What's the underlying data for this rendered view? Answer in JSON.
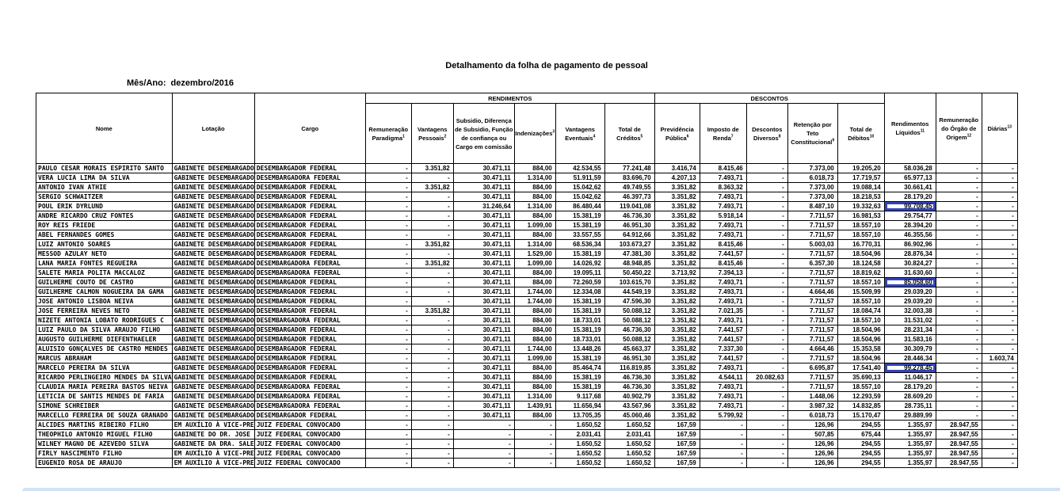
{
  "title": "Detalhamento da folha de pagamento de pessoal",
  "period": {
    "label": "Mês/Ano:",
    "value": "dezembro/2016"
  },
  "table": {
    "group_headers": {
      "rendimentos": "RENDIMENTOS",
      "descontos": "DESCONTOS"
    },
    "columns": [
      {
        "key": "nome",
        "label": "Nome",
        "sup": "",
        "group": null
      },
      {
        "key": "lotacao",
        "label": "Lotação",
        "sup": "",
        "group": null
      },
      {
        "key": "cargo",
        "label": "Cargo",
        "sup": "",
        "group": null
      },
      {
        "key": "rem_paradigma",
        "label": "Remuneração Paradigma",
        "sup": "1",
        "group": "rendimentos"
      },
      {
        "key": "vant_pessoais",
        "label": "Vantagens Pessoais",
        "sup": "2",
        "group": "rendimentos"
      },
      {
        "key": "subsidio",
        "label": "Subsidio, Diferença de Subsidio, Função de confiança ou Cargo em comissão",
        "sup": "",
        "group": "rendimentos"
      },
      {
        "key": "indenizacoes",
        "label": "Indenizações",
        "sup": "3",
        "group": "rendimentos"
      },
      {
        "key": "vant_eventuais",
        "label": "Vantagens Eventuais",
        "sup": "4",
        "group": "rendimentos"
      },
      {
        "key": "total_creditos",
        "label": "Total de Créditos",
        "sup": "5",
        "group": "rendimentos"
      },
      {
        "key": "prev_publica",
        "label": "Previdência Pública",
        "sup": "6",
        "group": "descontos"
      },
      {
        "key": "imposto_renda",
        "label": "Imposto de Renda",
        "sup": "7",
        "group": "descontos"
      },
      {
        "key": "desc_diversos",
        "label": "Descontos Diversos",
        "sup": "8",
        "group": "descontos"
      },
      {
        "key": "retencao_teto",
        "label": "Retenção por Teto Constitucional",
        "sup": "9",
        "group": "descontos"
      },
      {
        "key": "total_debitos",
        "label": "Total de Débitos",
        "sup": "10",
        "group": "descontos"
      },
      {
        "key": "rend_liquidos",
        "label": "Rendimentos Líquidos",
        "sup": "11",
        "group": null
      },
      {
        "key": "rem_origem",
        "label": "Remuneração do Órgão de Origem",
        "sup": "12",
        "group": null
      },
      {
        "key": "diarias",
        "label": "Diárias",
        "sup": "13",
        "group": null
      }
    ],
    "rows": [
      [
        "PAULO CESAR MORAIS ESPIRITO SANTO",
        "GABINETE DESEMBARGADO",
        "DESEMBARGADOR FEDERAL",
        "-",
        "3.351,82",
        "30.471,11",
        "884,00",
        "42.534,55",
        "77.241,48",
        "3.416,74",
        "8.415,46",
        "-",
        "7.373,00",
        "19.205,20",
        "58.036,28",
        "-",
        "-"
      ],
      [
        "VERA LUCIA LIMA DA SILVA",
        "GABINETE DESEMBARGADO",
        "DESEMBARGADORA FEDERAL",
        "-",
        "-",
        "30.471,11",
        "1.314,00",
        "51.911,59",
        "83.696,70",
        "4.207,13",
        "7.493,71",
        "-",
        "6.018,73",
        "17.719,57",
        "65.977,13",
        "-",
        "-"
      ],
      [
        "ANTONIO IVAN ATHIE",
        "GABINETE DESEMBARGADO",
        "DESEMBARGADOR FEDERAL",
        "-",
        "3.351,82",
        "30.471,11",
        "884,00",
        "15.042,62",
        "49.749,55",
        "3.351,82",
        "8.363,32",
        "-",
        "7.373,00",
        "19.088,14",
        "30.661,41",
        "-",
        "-"
      ],
      [
        "SERGIO SCHWAITZER",
        "GABINETE DESEMBARGADO",
        "DESEMBARGADOR FEDERAL",
        "-",
        "-",
        "30.471,11",
        "884,00",
        "15.042,62",
        "46.397,73",
        "3.351,82",
        "7.493,71",
        "-",
        "7.373,00",
        "18.218,53",
        "28.179,20",
        "-",
        "-"
      ],
      [
        "POUL ERIK DYRLUND",
        "GABINETE DESEMBARGADO",
        "DESEMBARGADOR FEDERAL",
        "-",
        "-",
        "31.246,64",
        "1.314,00",
        "86.480,44",
        "119.041,08",
        "3.351,82",
        "7.493,71",
        "-",
        "8.487,10",
        "19.332,63",
        "99.708,45",
        "-",
        "-"
      ],
      [
        "ANDRE RICARDO CRUZ FONTES",
        "GABINETE DESEMBARGADO",
        "DESEMBARGADOR FEDERAL",
        "-",
        "-",
        "30.471,11",
        "884,00",
        "15.381,19",
        "46.736,30",
        "3.351,82",
        "5.918,14",
        "-",
        "7.711,57",
        "16.981,53",
        "29.754,77",
        "-",
        "-"
      ],
      [
        "ROY REIS FRIEDE",
        "GABINETE DESEMBARGADO",
        "DESEMBARGADOR FEDERAL",
        "-",
        "-",
        "30.471,11",
        "1.099,00",
        "15.381,19",
        "46.951,30",
        "3.351,82",
        "7.493,71",
        "-",
        "7.711,57",
        "18.557,10",
        "28.394,20",
        "-",
        "-"
      ],
      [
        "ABEL FERNANDES GOMES",
        "GABINETE DESEMBARGADO",
        "DESEMBARGADOR FEDERAL",
        "-",
        "-",
        "30.471,11",
        "884,00",
        "33.557,55",
        "64.912,66",
        "3.351,82",
        "7.493,71",
        "-",
        "7.711,57",
        "18.557,10",
        "46.355,56",
        "-",
        "-"
      ],
      [
        "LUIZ ANTONIO SOARES",
        "GABINETE DESEMBARGADO",
        "DESEMBARGADOR FEDERAL",
        "-",
        "3.351,82",
        "30.471,11",
        "1.314,00",
        "68.536,34",
        "103.673,27",
        "3.351,82",
        "8.415,46",
        "-",
        "5.003,03",
        "16.770,31",
        "86.902,96",
        "-",
        "-"
      ],
      [
        "MESSOD AZULAY NETO",
        "GABINETE DESEMBARGADO",
        "DESEMBARGADOR FEDERAL",
        "-",
        "-",
        "30.471,11",
        "1.529,00",
        "15.381,19",
        "47.381,30",
        "3.351,82",
        "7.441,57",
        "-",
        "7.711,57",
        "18.504,96",
        "28.876,34",
        "-",
        "-"
      ],
      [
        "LANA MARIA FONTES REGUEIRA",
        "GABINETE DESEMBARGADO",
        "DESEMBARGADORA FEDERAL",
        "-",
        "3.351,82",
        "30.471,11",
        "1.099,00",
        "14.026,92",
        "48.948,85",
        "3.351,82",
        "8.415,46",
        "-",
        "6.357,30",
        "18.124,58",
        "30.824,27",
        "-",
        "-"
      ],
      [
        "SALETE MARIA POLITA MACCALOZ",
        "GABINETE DESEMBARGADO",
        "DESEMBARGADORA FEDERAL",
        "-",
        "-",
        "30.471,11",
        "884,00",
        "19.095,11",
        "50.450,22",
        "3.713,92",
        "7.394,13",
        "-",
        "7.711,57",
        "18.819,62",
        "31.630,60",
        "-",
        "-"
      ],
      [
        "GUILHERME COUTO DE CASTRO",
        "GABINETE DESEMBARGADO",
        "DESEMBARGADOR FEDERAL",
        "-",
        "-",
        "30.471,11",
        "884,00",
        "72.260,59",
        "103.615,70",
        "3.351,82",
        "7.493,71",
        "-",
        "7.711,57",
        "18.557,10",
        "85.058,60",
        "-",
        "-"
      ],
      [
        "GUILHERME CALMON NOGUEIRA DA GAMA",
        "GABINETE DESEMBARGADO",
        "DESEMBARGADOR FEDERAL",
        "-",
        "-",
        "30.471,11",
        "1.744,00",
        "12.334,08",
        "44.549,19",
        "3.351,82",
        "7.493,71",
        "-",
        "4.664,46",
        "15.509,99",
        "29.039,20",
        "-",
        "-"
      ],
      [
        "JOSE ANTONIO LISBOA NEIVA",
        "GABINETE DESEMBARGADO",
        "DESEMBARGADOR FEDERAL",
        "-",
        "-",
        "30.471,11",
        "1.744,00",
        "15.381,19",
        "47.596,30",
        "3.351,82",
        "7.493,71",
        "-",
        "7.711,57",
        "18.557,10",
        "29.039,20",
        "-",
        "-"
      ],
      [
        "JOSE FERREIRA NEVES NETO",
        "GABINETE DESEMBARGADO",
        "DESEMBARGADOR FEDERAL",
        "-",
        "3.351,82",
        "30.471,11",
        "884,00",
        "15.381,19",
        "50.088,12",
        "3.351,82",
        "7.021,35",
        "-",
        "7.711,57",
        "18.084,74",
        "32.003,38",
        "-",
        "-"
      ],
      [
        "NIZETE ANTONIA LOBATO RODRIGUES C",
        "GABINETE DESEMBARGADO",
        "DESEMBARGADORA FEDERAL",
        "-",
        "-",
        "30.471,11",
        "884,00",
        "18.733,01",
        "50.088,12",
        "3.351,82",
        "7.493,71",
        "-",
        "7.711,57",
        "18.557,10",
        "31.531,02",
        "-",
        "-"
      ],
      [
        "LUIZ PAULO DA SILVA ARAUJO FILHO",
        "GABINETE DESEMBARGADO",
        "DESEMBARGADOR FEDERAL",
        "-",
        "-",
        "30.471,11",
        "884,00",
        "15.381,19",
        "46.736,30",
        "3.351,82",
        "7.441,57",
        "-",
        "7.711,57",
        "18.504,96",
        "28.231,34",
        "-",
        "-"
      ],
      [
        "AUGUSTO GUILHERME DIEFENTHAELER",
        "GABINETE DESEMBARGADO",
        "DESEMBARGADOR FEDERAL",
        "-",
        "-",
        "30.471,11",
        "884,00",
        "18.733,01",
        "50.088,12",
        "3.351,82",
        "7.441,57",
        "-",
        "7.711,57",
        "18.504,96",
        "31.583,16",
        "-",
        "-"
      ],
      [
        "ALUISIO GONÇALVES DE CASTRO MENDES",
        "GABINETE DESEMBARGADO",
        "DESEMBARGADOR FEDERAL",
        "-",
        "-",
        "30.471,11",
        "1.744,00",
        "13.448,26",
        "45.663,37",
        "3.351,82",
        "7.337,30",
        "-",
        "4.664,46",
        "15.353,58",
        "30.309,79",
        "-",
        "-"
      ],
      [
        "MARCUS ABRAHAM",
        "GABINETE DESEMBARGADO",
        "DESEMBARGADOR FEDERAL",
        "-",
        "-",
        "30.471,11",
        "1.099,00",
        "15.381,19",
        "46.951,30",
        "3.351,82",
        "7.441,57",
        "-",
        "7.711,57",
        "18.504,96",
        "28.446,34",
        "-",
        "1.603,74"
      ],
      [
        "MARCELO PEREIRA DA SILVA",
        "GABINETE DESEMBARGADO",
        "DESEMBARGADOR FEDERAL",
        "-",
        "-",
        "30.471,11",
        "884,00",
        "85.464,74",
        "116.819,85",
        "3.351,82",
        "7.493,71",
        "-",
        "6.695,87",
        "17.541,40",
        "99.278,45",
        "-",
        "-"
      ],
      [
        "RICARDO PERLINGEIRO MENDES DA SILVA",
        "GABINETE DESEMBARGADO",
        "DESEMBARGADOR FEDERAL",
        "-",
        "-",
        "30.471,11",
        "884,00",
        "15.381,19",
        "46.736,30",
        "3.351,82",
        "4.544,11",
        "20.082,63",
        "7.711,57",
        "35.690,13",
        "11.046,17",
        "-",
        "-"
      ],
      [
        "CLAUDIA MARIA PEREIRA BASTOS NEIVA",
        "GABINETE DESEMBARGADO",
        "DESEMBARGADORA FEDERAL",
        "-",
        "-",
        "30.471,11",
        "884,00",
        "15.381,19",
        "46.736,30",
        "3.351,82",
        "7.493,71",
        "-",
        "7.711,57",
        "18.557,10",
        "28.179,20",
        "-",
        "-"
      ],
      [
        "LETICIA DE SANTIS MENDES DE FARIA",
        "GABINETE DESEMBARGADO",
        "DESEMBARGADORA FEDERAL",
        "-",
        "-",
        "30.471,11",
        "1.314,00",
        "9.117,68",
        "40.902,79",
        "3.351,82",
        "7.493,71",
        "-",
        "1.448,06",
        "12.293,59",
        "28.609,20",
        "-",
        "-"
      ],
      [
        "SIMONE SCHREIBER",
        "GABINETE DESEMBARGADO",
        "DESEMBARGADORA FEDERAL",
        "-",
        "-",
        "30.471,11",
        "1.439,91",
        "11.656,94",
        "43.567,96",
        "3.351,82",
        "7.493,71",
        "-",
        "3.987,32",
        "14.832,85",
        "28.735,11",
        "-",
        "-"
      ],
      [
        "MARCELLO FERREIRA DE SOUZA GRANADO",
        "GABINETE DESEMBARGADO",
        "DESEMBARGADOR FEDERAL",
        "-",
        "-",
        "30.471,11",
        "884,00",
        "13.705,35",
        "45.060,46",
        "3.351,82",
        "5.799,92",
        "-",
        "6.018,73",
        "15.170,47",
        "29.889,99",
        "-",
        "-"
      ],
      [
        "ALCIDES MARTINS RIBEIRO FILHO",
        "EM AUXÍLIO À VICE-PRE",
        "JUIZ FEDERAL CONVOCADO",
        "-",
        "-",
        "-",
        "-",
        "1.650,52",
        "1.650,52",
        "167,59",
        "-",
        "-",
        "126,96",
        "294,55",
        "1.355,97",
        "28.947,55",
        "-"
      ],
      [
        "THEOPHILO ANTONIO MIGUEL FILHO",
        "GABINETE DO DR. JOSE",
        "JUIZ FEDERAL CONVOCADO",
        "-",
        "-",
        "-",
        "-",
        "2.031,41",
        "2.031,41",
        "167,59",
        "-",
        "-",
        "507,85",
        "675,44",
        "1.355,97",
        "28.947,55",
        "-"
      ],
      [
        "WILNEY MAGNO DE AZEVEDO SILVA",
        "GABINETE DA DRA. SALE",
        "JUIZ FEDERAL CONVOCADO",
        "-",
        "-",
        "-",
        "-",
        "1.650,52",
        "1.650,52",
        "167,59",
        "-",
        "-",
        "126,96",
        "294,55",
        "1.355,97",
        "28.947,55",
        "-"
      ],
      [
        "FIRLY NASCIMENTO FILHO",
        "EM AUXÍLIO À VICE-PRE",
        "JUIZ FEDERAL CONVOCADO",
        "-",
        "-",
        "-",
        "-",
        "1.650,52",
        "1.650,52",
        "167,59",
        "-",
        "-",
        "126,96",
        "294,55",
        "1.355,97",
        "28.947,55",
        "-"
      ],
      [
        "EUGENIO ROSA DE ARAUJO",
        "EM AUXÍLIO À VICE-PRE",
        "JUIZ FEDERAL CONVOCADO",
        "-",
        "-",
        "-",
        "-",
        "1.650,52",
        "1.650,52",
        "167,59",
        "-",
        "-",
        "126,96",
        "294,55",
        "1.355,97",
        "28.947,55",
        "-"
      ]
    ],
    "highlighted_cells": [
      {
        "row": 4,
        "col": "rend_liquidos",
        "value": "99.708,45"
      },
      {
        "row": 12,
        "col": "rend_liquidos",
        "value": "85.058,60"
      },
      {
        "row": 21,
        "col": "rend_liquidos",
        "value": "99.278,45"
      }
    ],
    "highlight_color": "#3444b8"
  }
}
